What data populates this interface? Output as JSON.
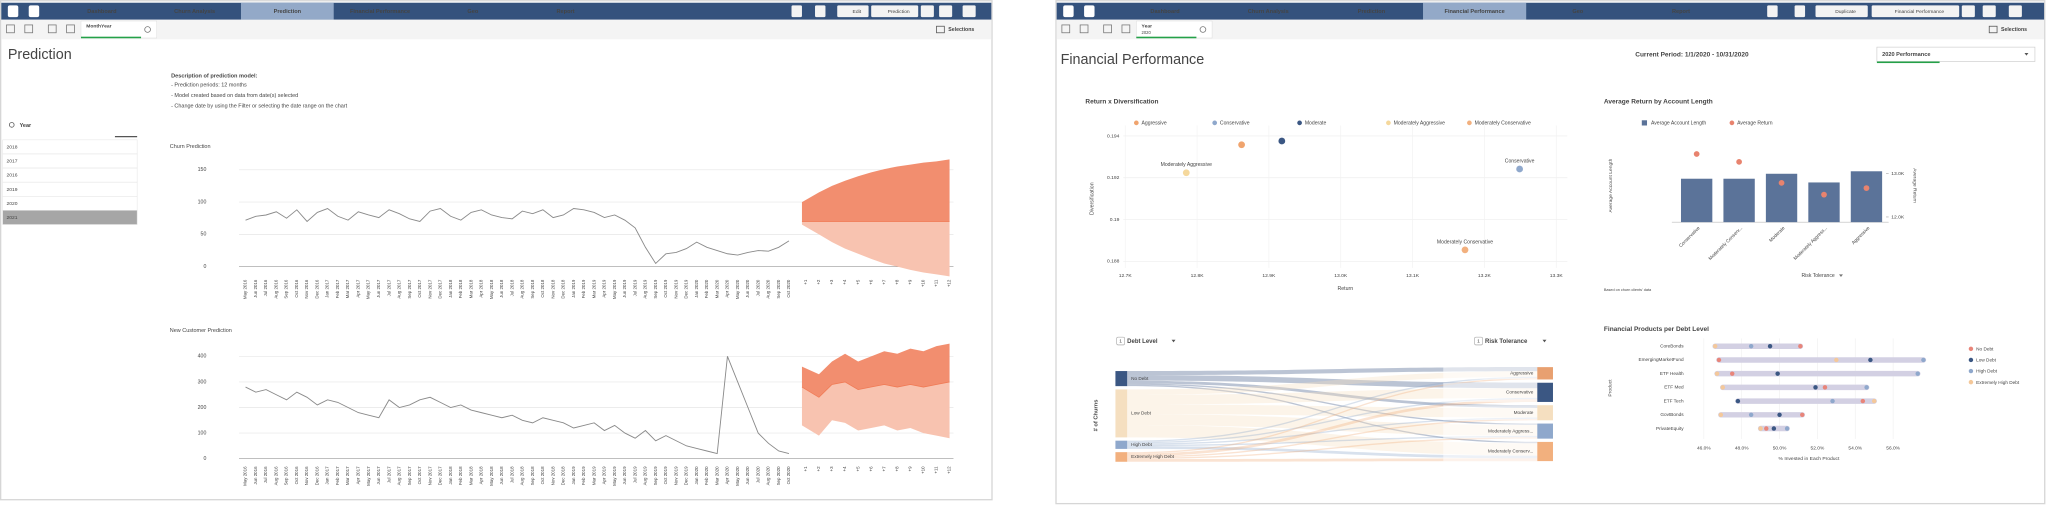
{
  "left": {
    "nav": {
      "tabs": [
        "Dashboard",
        "Churn Analysis",
        "Prediction",
        "Financial Performance",
        "Geo",
        "Report"
      ],
      "buttons": [
        "Edit",
        "Prediction"
      ],
      "selections": "Selections"
    },
    "filter": {
      "label": "MonthYear"
    },
    "title": "Prediction",
    "description": {
      "heading": "Description of prediction model:",
      "lines": [
        "- Prediction periods: 12 months",
        "- Model created based on data from date(s) selected",
        "- Change date by using the Filter or selecting the date range on the chart"
      ]
    },
    "search": "Year",
    "years": [
      "2018",
      "2017",
      "2016",
      "2019",
      "2020",
      "2021"
    ],
    "charts": [
      {
        "type": "line",
        "title": "Churn Prediction",
        "categories": [
          "May 2016",
          "Jun 2016",
          "Jul 2016",
          "Aug 2016",
          "Sep 2016",
          "Oct 2016",
          "Nov 2016",
          "Dec 2016",
          "Jan 2017",
          "Feb 2017",
          "Mar 2017",
          "Apr 2017",
          "May 2017",
          "Jun 2017",
          "Jul 2017",
          "Aug 2017",
          "Sep 2017",
          "Oct 2017",
          "Nov 2017",
          "Dec 2017",
          "Jan 2018",
          "Feb 2018",
          "Mar 2018",
          "Apr 2018",
          "May 2018",
          "Jun 2018",
          "Jul 2018",
          "Aug 2018",
          "Sep 2018",
          "Oct 2018",
          "Nov 2018",
          "Dec 2018",
          "Jan 2019",
          "Feb 2019",
          "Mar 2019",
          "Apr 2019",
          "May 2019",
          "Jun 2019",
          "Jul 2019",
          "Aug 2019",
          "Sep 2019",
          "Oct 2019",
          "Nov 2019",
          "Dec 2019",
          "Jan 2020",
          "Feb 2020",
          "Mar 2020",
          "Apr 2020",
          "May 2020",
          "Jun 2020",
          "Jul 2020",
          "Aug 2020",
          "Sep 2020",
          "Oct 2020"
        ],
        "values": [
          72,
          78,
          80,
          85,
          75,
          88,
          70,
          84,
          90,
          78,
          72,
          85,
          80,
          76,
          88,
          82,
          74,
          70,
          86,
          90,
          78,
          72,
          84,
          88,
          80,
          76,
          74,
          86,
          82,
          88,
          76,
          80,
          90,
          88,
          84,
          76,
          80,
          72,
          60,
          30,
          5,
          20,
          22,
          28,
          38,
          30,
          25,
          20,
          18,
          22,
          25,
          24,
          30,
          40
        ],
        "forecast_categories": [
          "+1",
          "+2",
          "+3",
          "+4",
          "+5",
          "+6",
          "+7",
          "+8",
          "+9",
          "+10",
          "+11",
          "+12"
        ],
        "forecast": {
          "upper": [
            100,
            115,
            125,
            133,
            140,
            146,
            151,
            155,
            158,
            161,
            163,
            166
          ],
          "mid": [
            70,
            70,
            70,
            70,
            70,
            70,
            70,
            70,
            70,
            70,
            70,
            70
          ],
          "lower": [
            65,
            50,
            38,
            28,
            20,
            12,
            5,
            0,
            -5,
            -9,
            -12,
            -15
          ]
        },
        "color": "#8a8a8a",
        "upper_color": "#f28e6f",
        "lower_color": "#f8c3b0",
        "ylim": [
          -16,
          170
        ],
        "yticks": [
          0,
          50,
          100,
          150
        ],
        "grid": true
      },
      {
        "type": "line",
        "title": "New Customer Prediction",
        "categories": [
          "May 2016",
          "Jun 2016",
          "Jul 2016",
          "Aug 2016",
          "Sep 2016",
          "Oct 2016",
          "Nov 2016",
          "Dec 2016",
          "Jan 2017",
          "Feb 2017",
          "Mar 2017",
          "Apr 2017",
          "May 2017",
          "Jun 2017",
          "Jul 2017",
          "Aug 2017",
          "Sep 2017",
          "Oct 2017",
          "Nov 2017",
          "Dec 2017",
          "Jan 2018",
          "Feb 2018",
          "Mar 2018",
          "Apr 2018",
          "May 2018",
          "Jun 2018",
          "Jul 2018",
          "Aug 2018",
          "Sep 2018",
          "Oct 2018",
          "Nov 2018",
          "Dec 2018",
          "Jan 2019",
          "Feb 2019",
          "Mar 2019",
          "Apr 2019",
          "May 2019",
          "Jun 2019",
          "Jul 2019",
          "Aug 2019",
          "Sep 2019",
          "Oct 2019",
          "Nov 2019",
          "Dec 2019",
          "Jan 2020",
          "Feb 2020",
          "Mar 2020",
          "Apr 2020",
          "May 2020",
          "Jun 2020",
          "Jul 2020",
          "Aug 2020",
          "Sep 2020",
          "Oct 2020"
        ],
        "values": [
          280,
          260,
          270,
          250,
          230,
          260,
          240,
          210,
          230,
          220,
          200,
          180,
          170,
          160,
          230,
          200,
          210,
          230,
          240,
          220,
          200,
          210,
          190,
          180,
          170,
          160,
          170,
          150,
          140,
          160,
          150,
          140,
          120,
          130,
          140,
          110,
          130,
          100,
          80,
          110,
          70,
          90,
          70,
          50,
          40,
          30,
          20,
          400,
          300,
          200,
          100,
          60,
          30,
          20
        ],
        "forecast_categories": [
          "+1",
          "+2",
          "+3",
          "+4",
          "+5",
          "+6",
          "+7",
          "+8",
          "+9",
          "+10",
          "+11",
          "+12"
        ],
        "forecast": {
          "upper": [
            360,
            330,
            380,
            410,
            380,
            400,
            420,
            410,
            430,
            420,
            440,
            450
          ],
          "mid": [
            280,
            240,
            290,
            300,
            270,
            280,
            290,
            280,
            290,
            280,
            290,
            300
          ],
          "lower": [
            130,
            90,
            150,
            140,
            110,
            120,
            130,
            110,
            120,
            100,
            90,
            80
          ]
        },
        "color": "#8a8a8a",
        "upper_color": "#f28e6f",
        "lower_color": "#f8c3b0",
        "ylim": [
          -20,
          460
        ],
        "yticks": [
          0,
          100,
          200,
          300,
          400
        ],
        "grid": true
      }
    ]
  },
  "right": {
    "nav": {
      "tabs": [
        "Dashboard",
        "Churn Analysis",
        "Prediction",
        "Financial Performance",
        "Geo",
        "Report"
      ],
      "buttons": [
        "Duplicate",
        "Financial Performance"
      ],
      "selections": "Selections"
    },
    "filter": {
      "label": "Year",
      "value": "2020"
    },
    "title": "Financial Performance",
    "period": "Current Period: 1/1/2020 - 10/31/2020",
    "dropdown": "2020 Performance",
    "scatter": {
      "type": "scatter",
      "title": "Return x Diversification",
      "xlabel": "Return",
      "ylabel": "Diversification",
      "series": [
        {
          "name": "Aggressive",
          "color": "#f0a46e",
          "x": [
            12.862
          ],
          "y": [
            0.19358
          ]
        },
        {
          "name": "Conservative",
          "color": "#8fa8cc",
          "x": [
            13.249
          ],
          "y": [
            0.19242
          ]
        },
        {
          "name": "Moderate",
          "color": "#3b5783",
          "x": [
            12.918
          ],
          "y": [
            0.19376
          ]
        },
        {
          "name": "Moderately Aggressive",
          "color": "#f5d89c",
          "x": [
            12.785
          ],
          "y": [
            0.19224
          ]
        },
        {
          "name": "Moderately Conservative",
          "color": "#f2b07e",
          "x": [
            13.173
          ],
          "y": [
            0.18855
          ]
        }
      ],
      "point_labels": [
        "Moderately Aggressive",
        "Conservative",
        "Moderately Conservative"
      ],
      "xlim": [
        12.67,
        13.33
      ],
      "xticks": [
        {
          "value": 12.7,
          "label": "12.7K"
        },
        {
          "value": 12.8,
          "label": "12.8K"
        },
        {
          "value": 12.9,
          "label": "12.9K"
        },
        {
          "value": 13.0,
          "label": "13.0K"
        },
        {
          "value": 13.1,
          "label": "13.1K"
        },
        {
          "value": 13.2,
          "label": "13.2K"
        },
        {
          "value": 13.3,
          "label": "13.3K"
        }
      ],
      "ylim": [
        0.1875,
        0.1945
      ],
      "yticks": [
        0.188,
        0.19,
        0.192,
        0.194
      ],
      "grid": true
    },
    "bars": {
      "type": "bar",
      "title": "Average Return by Account Length",
      "xlabel": "Risk Tolerance",
      "note": "Based on churn clients' data",
      "categories": [
        "Conservative",
        "Moderately Conserv...",
        "Moderate",
        "Moderately Aggress...",
        "Aggressive"
      ],
      "series": [
        {
          "name": "Average Account Length",
          "color": "#5b7399",
          "values": [
            35,
            35,
            39,
            32,
            41
          ]
        },
        {
          "name": "Average Return",
          "color": "#e8836e",
          "axis": "y2",
          "values": [
            13455,
            13273,
            12788,
            12515,
            12667
          ]
        }
      ],
      "ylim": [
        0,
        60
      ],
      "y2lim": [
        11880,
        13600
      ],
      "y2ticks": [
        {
          "value": 12000,
          "label": "12.0K"
        },
        {
          "value": 13000,
          "label": "13.0K"
        }
      ]
    },
    "sankey": {
      "type": "sankey",
      "left_header": {
        "badge": "1",
        "label": "Debt Level"
      },
      "right_header": {
        "badge": "1",
        "label": "Risk Tolerance"
      },
      "measure": "# of Churns",
      "left_nodes": [
        {
          "name": "No Debt",
          "value": 11,
          "color": "#3b5783"
        },
        {
          "name": "Low Debt",
          "value": 35,
          "color": "#f5dfc0"
        },
        {
          "name": "High Debt",
          "value": 6,
          "color": "#8fa8cc"
        },
        {
          "name": "Extremely High Debt",
          "value": 7,
          "color": "#f2b07e"
        }
      ],
      "right_nodes": [
        {
          "name": "Aggressive",
          "value": 9,
          "color": "#e8a070"
        },
        {
          "name": "Conservative",
          "value": 14,
          "color": "#3b5783"
        },
        {
          "name": "Moderate",
          "value": 11,
          "color": "#f5dfc0"
        },
        {
          "name": "Moderately Aggress...",
          "value": 11,
          "color": "#8fa8cc"
        },
        {
          "name": "Moderately Conserv...",
          "value": 14,
          "color": "#f2b07e"
        }
      ],
      "links": [
        {
          "source": 0,
          "target": 0,
          "value": 3
        },
        {
          "source": 0,
          "target": 1,
          "value": 4
        },
        {
          "source": 0,
          "target": 2,
          "value": 2
        },
        {
          "source": 0,
          "target": 3,
          "value": 1
        },
        {
          "source": 0,
          "target": 4,
          "value": 1
        },
        {
          "source": 1,
          "target": 0,
          "value": 4
        },
        {
          "source": 1,
          "target": 1,
          "value": 7
        },
        {
          "source": 1,
          "target": 2,
          "value": 7
        },
        {
          "source": 1,
          "target": 3,
          "value": 8
        },
        {
          "source": 1,
          "target": 4,
          "value": 9
        },
        {
          "source": 2,
          "target": 0,
          "value": 1
        },
        {
          "source": 2,
          "target": 1,
          "value": 1
        },
        {
          "source": 2,
          "target": 2,
          "value": 1
        },
        {
          "source": 2,
          "target": 3,
          "value": 1
        },
        {
          "source": 2,
          "target": 4,
          "value": 2
        },
        {
          "source": 3,
          "target": 0,
          "value": 1
        },
        {
          "source": 3,
          "target": 1,
          "value": 2
        },
        {
          "source": 3,
          "target": 2,
          "value": 1
        },
        {
          "source": 3,
          "target": 3,
          "value": 1
        },
        {
          "source": 3,
          "target": 4,
          "value": 2
        }
      ]
    },
    "dumbbell": {
      "type": "dumbbell",
      "title": "Financial Products per Debt Level",
      "xlabel": "% Invested in Each Product",
      "ylabel": "Product",
      "categories": [
        "CoreBonds",
        "EmergingMarketFund",
        "ETF Health",
        "ETF Med",
        "ETF Tech",
        "GovtBonds",
        "PrivateEquity"
      ],
      "series": [
        {
          "name": "No Debt",
          "color": "#e8857a",
          "values": [
            51.1,
            46.8,
            47.5,
            52.4,
            54.4,
            51.2,
            49.3
          ]
        },
        {
          "name": "Low Debt",
          "color": "#3b5783",
          "values": [
            49.5,
            54.8,
            49.9,
            51.9,
            47.8,
            50.0,
            49.7
          ]
        },
        {
          "name": "High Debt",
          "color": "#8fa8cc",
          "values": [
            48.5,
            57.6,
            57.3,
            54.6,
            52.8,
            48.5,
            50.4
          ]
        },
        {
          "name": "Extremely High Debt",
          "color": "#f4c89a",
          "values": [
            46.6,
            53.0,
            46.7,
            47.0,
            55.0,
            46.9,
            49.0
          ]
        }
      ],
      "xlim": [
        45,
        58.8
      ],
      "xticks": [
        {
          "value": 46,
          "label": "46.0%"
        },
        {
          "value": 48,
          "label": "48.0%"
        },
        {
          "value": 50,
          "label": "50.0%"
        },
        {
          "value": 52,
          "label": "52.0%"
        },
        {
          "value": 54,
          "label": "54.0%"
        },
        {
          "value": 56,
          "label": "56.0%"
        }
      ]
    }
  }
}
